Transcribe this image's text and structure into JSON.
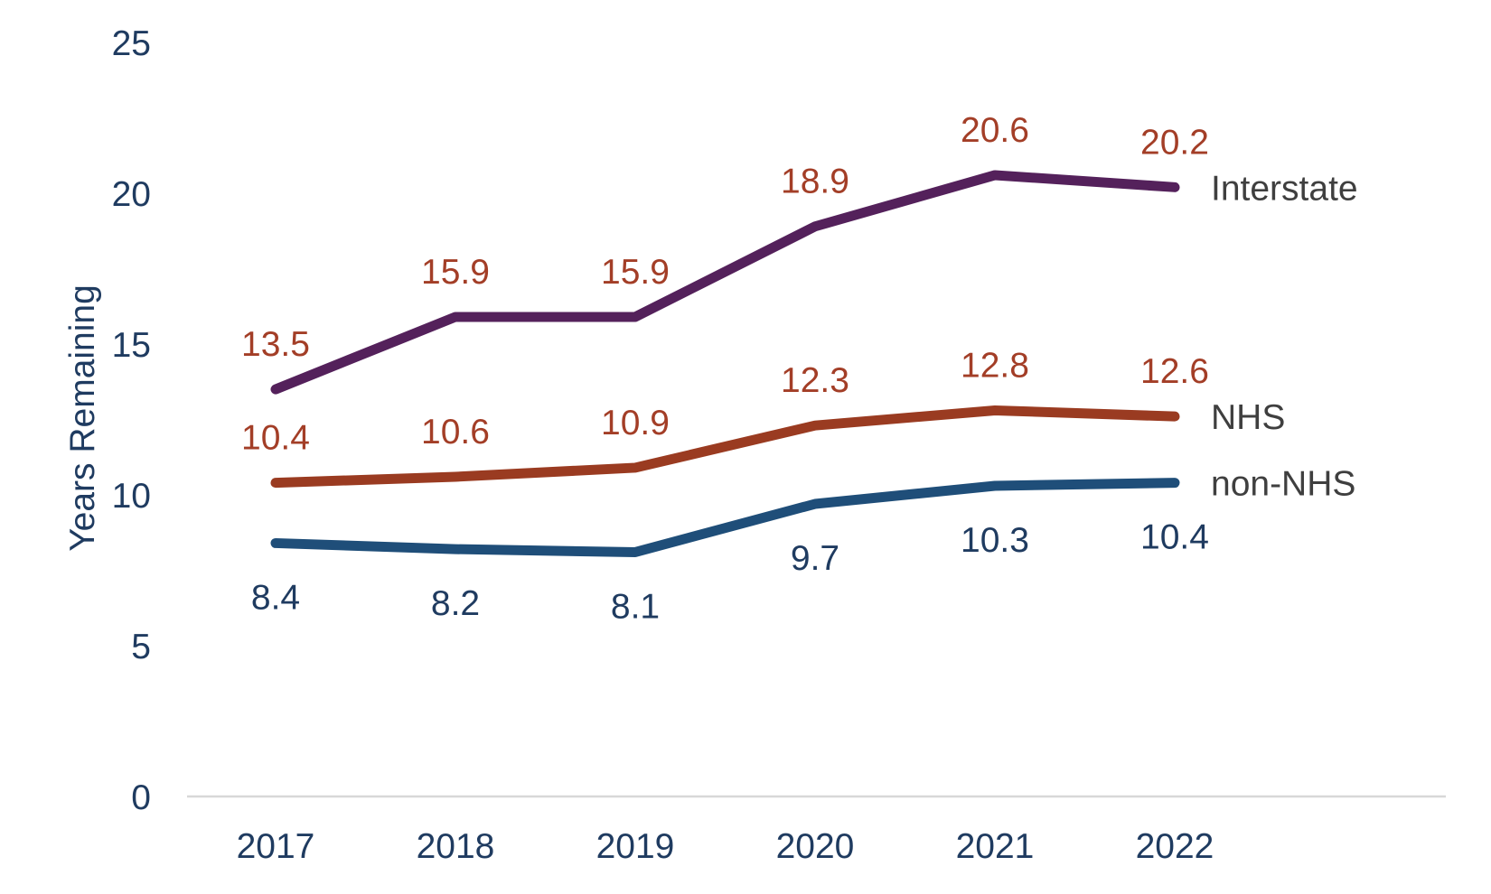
{
  "page": {
    "background_color": "#ffffff"
  },
  "chart_data": {
    "type": "line",
    "title": "",
    "xlabel": "",
    "ylabel": "Years Remaining",
    "categories": [
      "2017",
      "2018",
      "2019",
      "2020",
      "2021",
      "2022"
    ],
    "y_ticks": [
      0,
      5,
      10,
      15,
      20,
      25
    ],
    "ylim": [
      0,
      25
    ],
    "grid": false,
    "legend_position": "right-of-line-end",
    "data_labels_shown": true,
    "series": [
      {
        "name": "Interstate",
        "color": "#54215B",
        "label_color": "#A33E27",
        "label_position": "above",
        "values": [
          13.5,
          15.9,
          15.9,
          18.9,
          20.6,
          20.2
        ]
      },
      {
        "name": "NHS",
        "color": "#9A3B21",
        "label_color": "#A33E27",
        "label_position": "above",
        "values": [
          10.4,
          10.6,
          10.9,
          12.3,
          12.8,
          12.6
        ]
      },
      {
        "name": "non-NHS",
        "color": "#1F4E79",
        "label_color": "#1F3B60",
        "label_position": "below",
        "values": [
          8.4,
          8.2,
          8.1,
          9.7,
          10.3,
          10.4
        ]
      }
    ],
    "colors": {
      "axis_text": "#1F3B60",
      "series_name_text": "#3F3F3F",
      "axis_line": "#D8D8D8"
    }
  }
}
